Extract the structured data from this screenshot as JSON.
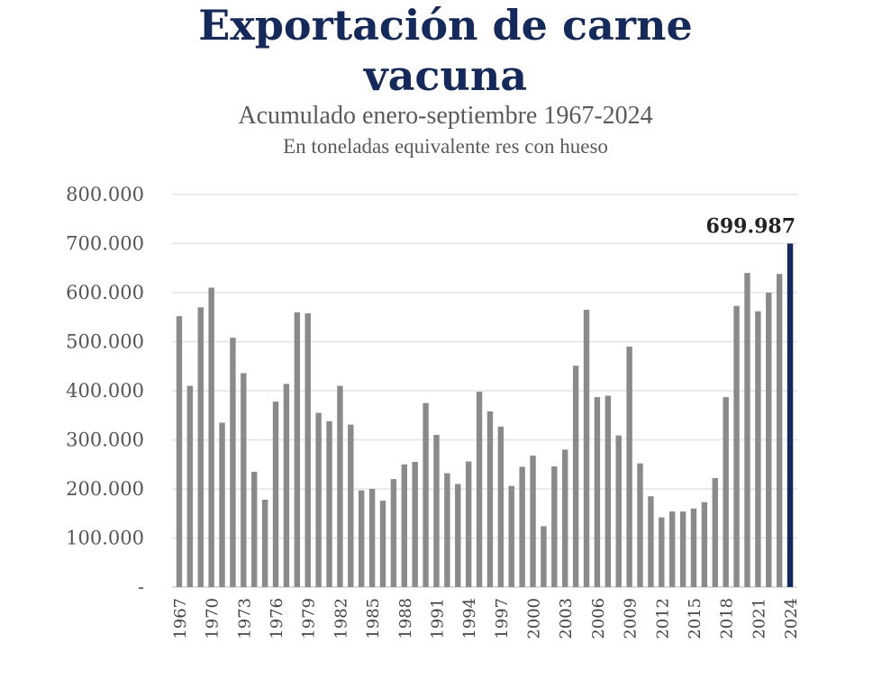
{
  "title_line1": "Exportación de carne",
  "title_line2": "vacuna",
  "subtitle": "Acumulado enero-septiembre 1967-2024",
  "subtitle2": "En toneladas equivalente res con hueso",
  "colors": {
    "bar": "#8a8a8a",
    "highlight": "#142a5c",
    "title": "#142a5c",
    "grid": "#e3e3e3"
  },
  "chart_data": {
    "type": "bar",
    "title": "Exportación de carne vacuna",
    "subtitle": "Acumulado enero-septiembre 1967-2024",
    "unit_note": "En toneladas equivalente res con hueso",
    "x": [
      1967,
      1968,
      1969,
      1970,
      1971,
      1972,
      1973,
      1974,
      1975,
      1976,
      1977,
      1978,
      1979,
      1980,
      1981,
      1982,
      1983,
      1984,
      1985,
      1986,
      1987,
      1988,
      1989,
      1990,
      1991,
      1992,
      1993,
      1994,
      1995,
      1996,
      1997,
      1998,
      1999,
      2000,
      2001,
      2002,
      2003,
      2004,
      2005,
      2006,
      2007,
      2008,
      2009,
      2010,
      2011,
      2012,
      2013,
      2014,
      2015,
      2016,
      2017,
      2018,
      2019,
      2020,
      2021,
      2022,
      2023,
      2024
    ],
    "values": [
      552000,
      410000,
      570000,
      610000,
      335000,
      508000,
      436000,
      235000,
      178000,
      378000,
      414000,
      560000,
      558000,
      355000,
      338000,
      410000,
      331000,
      197000,
      200000,
      176000,
      220000,
      250000,
      255000,
      375000,
      310000,
      232000,
      210000,
      256000,
      398000,
      358000,
      327000,
      206000,
      245000,
      268000,
      124000,
      246000,
      280000,
      451000,
      565000,
      387000,
      390000,
      309000,
      490000,
      252000,
      185000,
      142000,
      154000,
      154000,
      160000,
      173000,
      222000,
      387000,
      573000,
      640000,
      562000,
      600000,
      638000,
      699987
    ],
    "xtick_labels": [
      "1967",
      "1970",
      "1973",
      "1976",
      "1979",
      "1982",
      "1985",
      "1988",
      "1991",
      "1994",
      "1997",
      "2000",
      "2003",
      "2006",
      "2009",
      "2012",
      "2015",
      "2018",
      "2021",
      "2024"
    ],
    "ytick_labels": [
      "-",
      "100.000",
      "200.000",
      "300.000",
      "400.000",
      "500.000",
      "600.000",
      "700.000",
      "800.000"
    ],
    "ylim": [
      0,
      800000
    ],
    "ytick_step": 100000,
    "grid": true,
    "highlight_index": 57,
    "highlight_label": "699.987"
  }
}
